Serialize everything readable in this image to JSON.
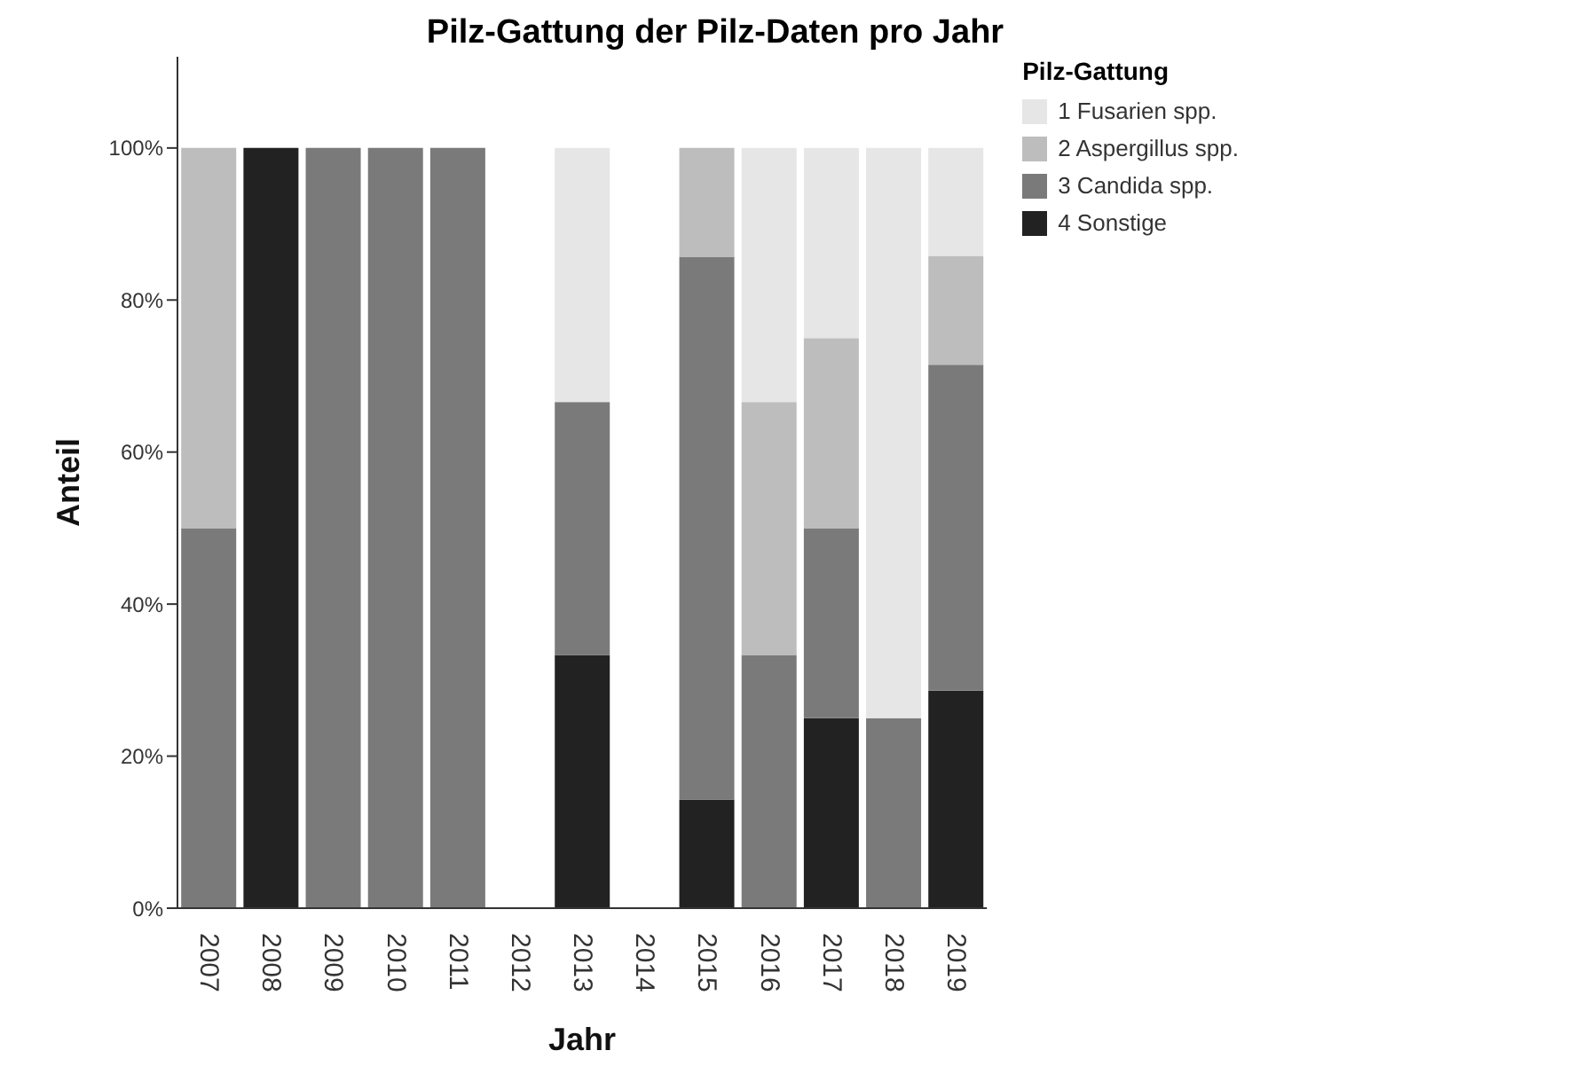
{
  "chart_data": {
    "type": "bar",
    "title": "Pilz-Gattung der Pilz-Daten pro Jahr",
    "xlabel": "Jahr",
    "ylabel": "Anteil",
    "legend_title": "Pilz-Gattung",
    "stacked": true,
    "legend": "top right",
    "grid": false,
    "categories": [
      "2007",
      "2008",
      "2009",
      "2010",
      "2011",
      "2012",
      "2013",
      "2014",
      "2015",
      "2016",
      "2017",
      "2018",
      "2019"
    ],
    "ylim": [
      0,
      112
    ],
    "yticks": [
      {
        "value": 0,
        "label": "0%"
      },
      {
        "value": 20,
        "label": "20%"
      },
      {
        "value": 40,
        "label": "40%"
      },
      {
        "value": 60,
        "label": "60%"
      },
      {
        "value": 80,
        "label": "80%"
      },
      {
        "value": 100,
        "label": "100%"
      }
    ],
    "series": [
      {
        "name": "4 Sonstige",
        "color": "#222222",
        "values": [
          null,
          100,
          null,
          null,
          null,
          null,
          33.3,
          null,
          14.3,
          null,
          25,
          null,
          28.6
        ]
      },
      {
        "name": "3 Candida spp.",
        "color": "#7a7a7a",
        "values": [
          50,
          null,
          100,
          100,
          100,
          null,
          33.3,
          null,
          71.4,
          33.3,
          25,
          25,
          42.9
        ]
      },
      {
        "name": "2 Aspergillus spp.",
        "color": "#bdbdbd",
        "values": [
          50,
          null,
          null,
          null,
          null,
          null,
          null,
          null,
          14.3,
          33.3,
          25,
          null,
          14.3
        ]
      },
      {
        "name": "1 Fusarien spp.",
        "color": "#e6e6e6",
        "values": [
          null,
          null,
          null,
          null,
          null,
          null,
          33.4,
          null,
          null,
          33.4,
          25,
          75,
          14.2
        ]
      }
    ]
  }
}
